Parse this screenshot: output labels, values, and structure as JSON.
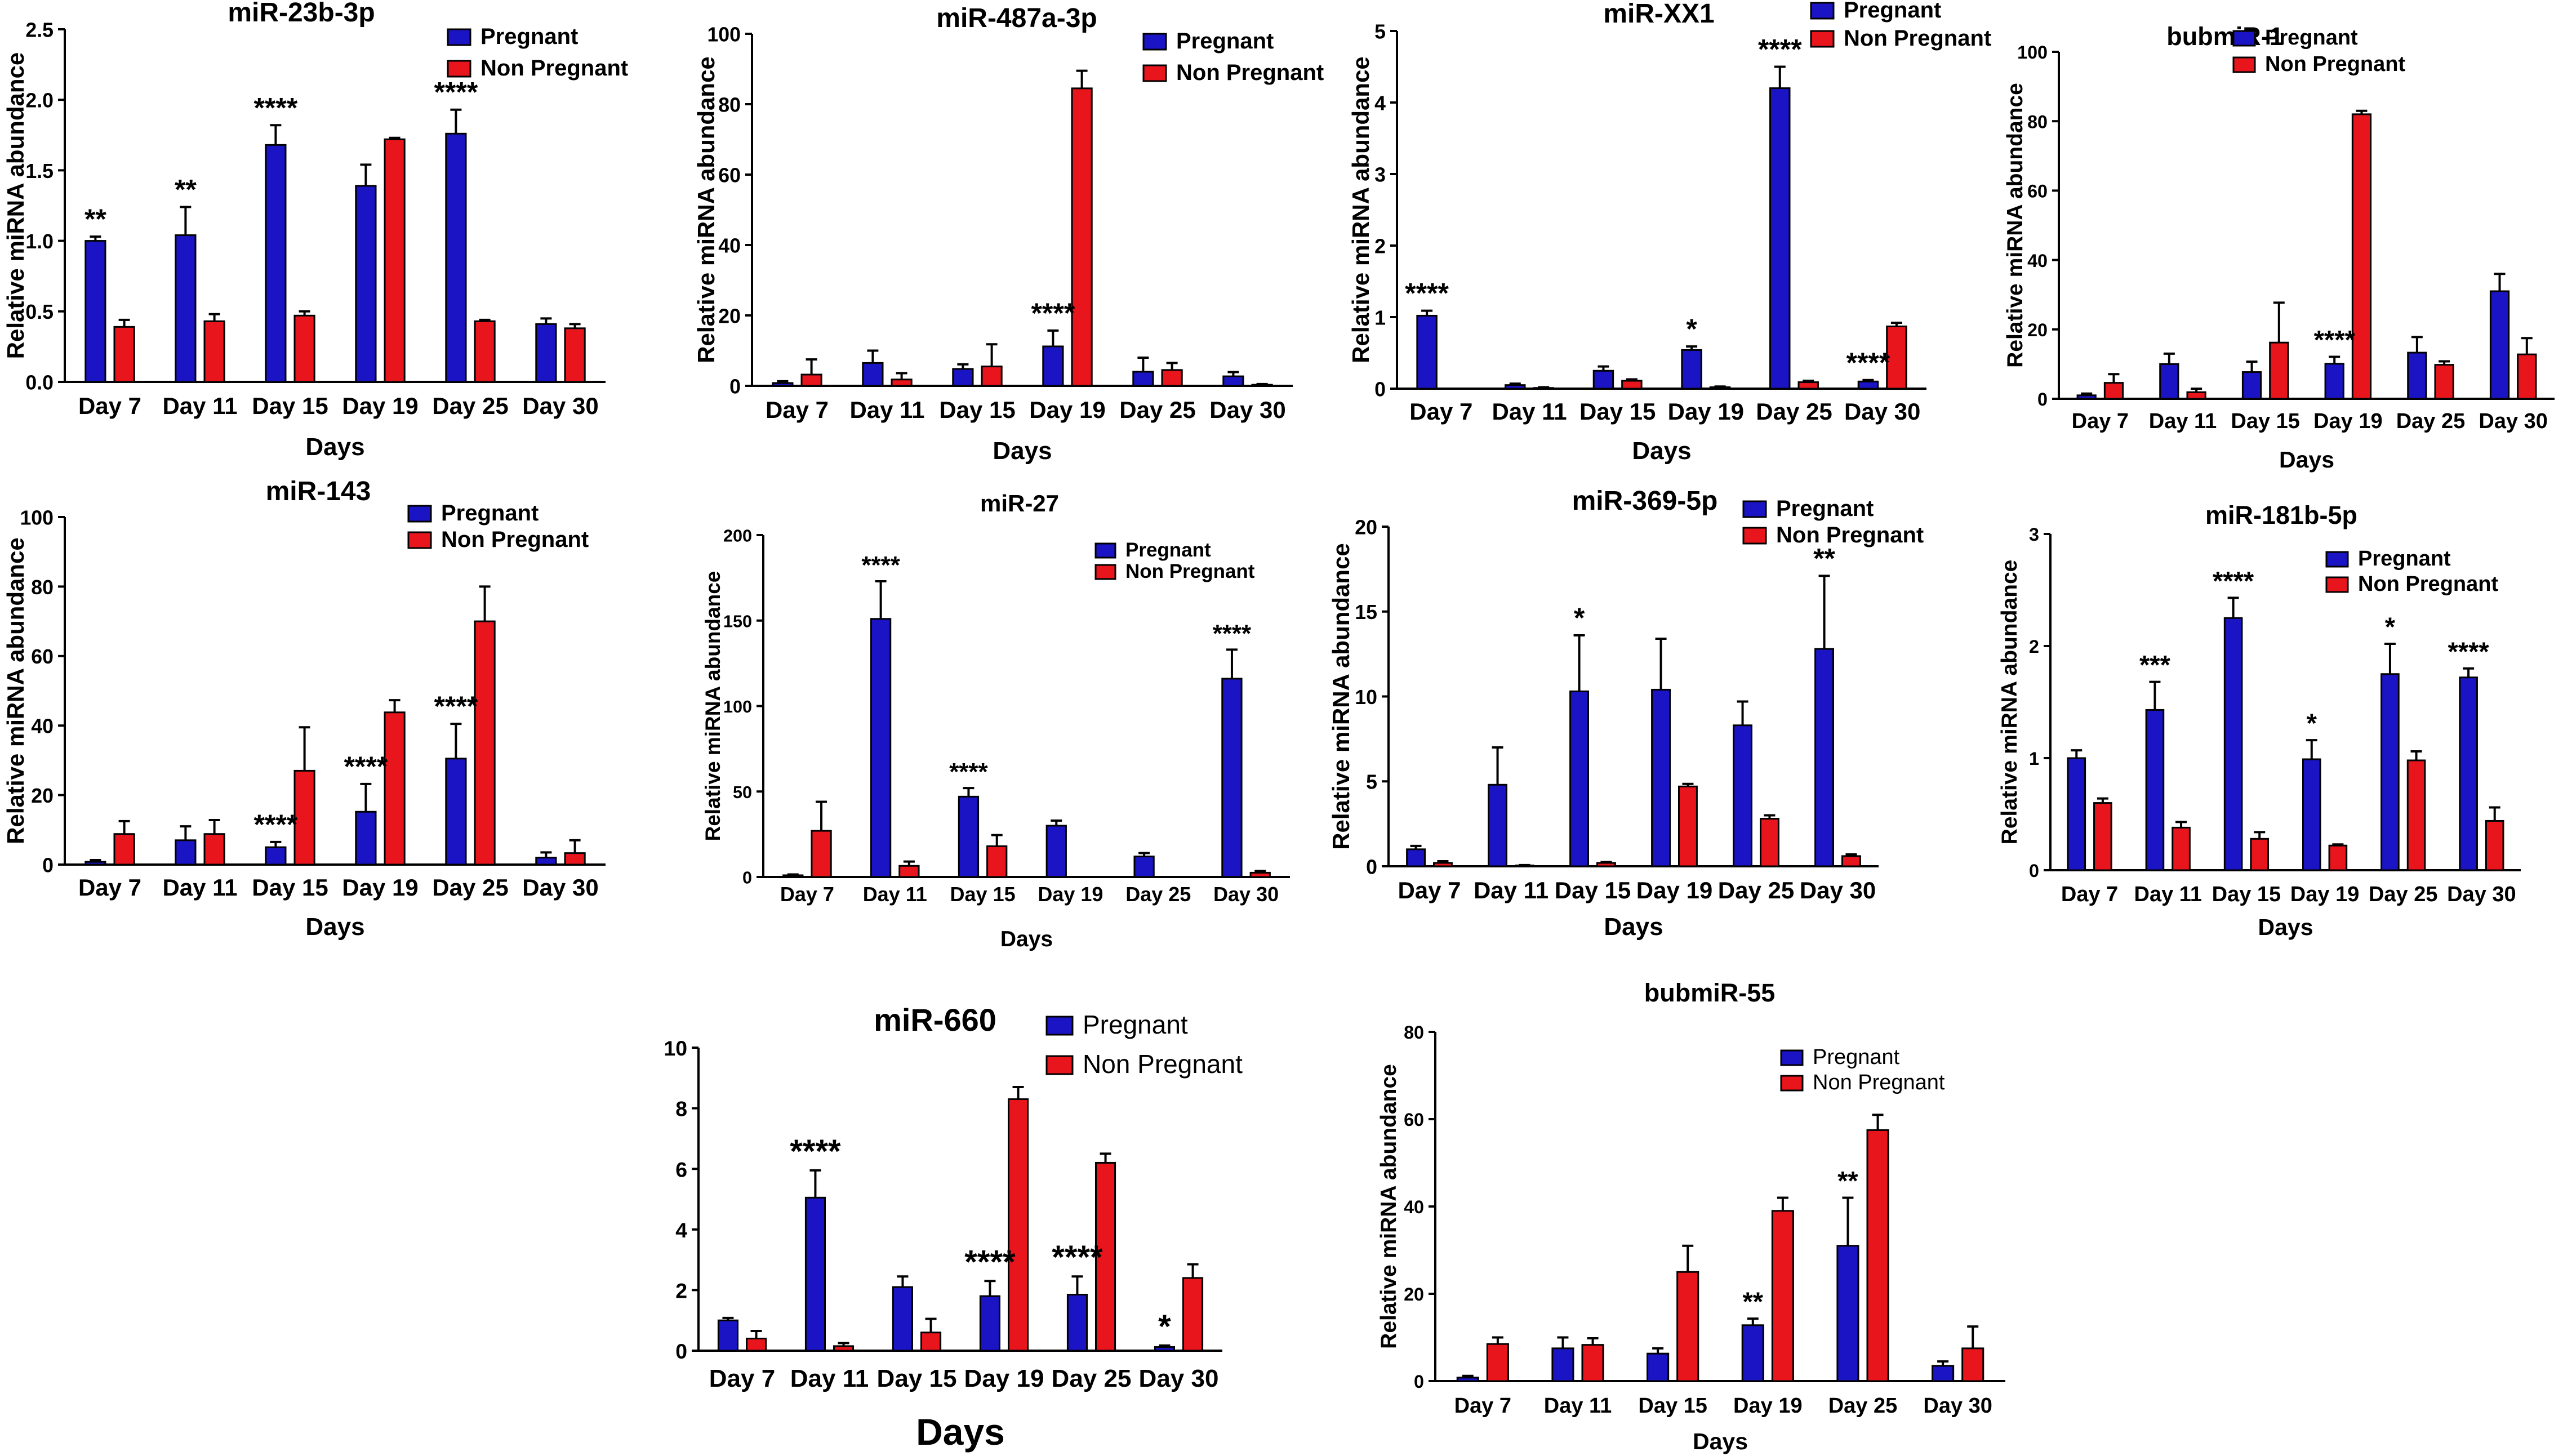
{
  "figure": {
    "x_label": "Days"
  },
  "colors": {
    "pregnant": "#1a14c4",
    "non_pregnant": "#e8161c",
    "error": "#000000"
  },
  "chart_data": [
    {
      "type": "bar",
      "title": "miR-23b-3p",
      "xlabel": "Days",
      "ylabel": "Relative miRNA abundance",
      "categories": [
        "Day 7",
        "Day 11",
        "Day 15",
        "Day 19",
        "Day 25",
        "Day 30"
      ],
      "ylim": [
        0,
        2.5
      ],
      "yticks": [
        "0.0",
        "0.5",
        "1.0",
        "1.5",
        "2.0",
        "2.5"
      ],
      "legend": [
        "Pregnant",
        "Non Pregnant"
      ],
      "series": [
        {
          "name": "Pregnant",
          "values": [
            1.0,
            1.04,
            1.68,
            1.39,
            1.76,
            0.41
          ],
          "errors": [
            0.03,
            0.2,
            0.14,
            0.15,
            0.17,
            0.04
          ]
        },
        {
          "name": "Non Pregnant",
          "values": [
            0.39,
            0.43,
            0.47,
            1.72,
            0.43,
            0.38
          ],
          "errors": [
            0.05,
            0.05,
            0.03,
            0.01,
            0.01,
            0.03
          ]
        }
      ],
      "annotations": [
        "**",
        "**",
        "****",
        "",
        "****",
        ""
      ]
    },
    {
      "type": "bar",
      "title": "miR-487a-3p",
      "xlabel": "Days",
      "ylabel": "Relative miRNA abundance",
      "categories": [
        "Day 7",
        "Day 11",
        "Day 15",
        "Day 19",
        "Day 25",
        "Day 30"
      ],
      "ylim": [
        0,
        100
      ],
      "yticks": [
        "0",
        "20",
        "40",
        "60",
        "80",
        "100"
      ],
      "legend": [
        "Pregnant",
        "Non Pregnant"
      ],
      "series": [
        {
          "name": "Pregnant",
          "values": [
            0.8,
            6.5,
            4.8,
            11.2,
            4.0,
            2.7
          ],
          "errors": [
            0.5,
            3.5,
            1.3,
            4.5,
            4.0,
            1.2
          ]
        },
        {
          "name": "Non Pregnant",
          "values": [
            3.2,
            1.8,
            5.5,
            84.5,
            4.5,
            0.3
          ],
          "errors": [
            4.3,
            1.8,
            6.3,
            5.0,
            2.0,
            0.2
          ]
        }
      ],
      "annotations": [
        "",
        "",
        "",
        "****",
        "",
        ""
      ]
    },
    {
      "type": "bar",
      "title": "miR-XX1",
      "xlabel": "Days",
      "ylabel": "Relative miRNA abundance",
      "categories": [
        "Day 7",
        "Day 11",
        "Day 15",
        "Day 19",
        "Day 25",
        "Day 30"
      ],
      "ylim": [
        0,
        5
      ],
      "yticks": [
        "0",
        "1",
        "2",
        "3",
        "4",
        "5"
      ],
      "legend": [
        "Pregnant",
        "Non Pregnant"
      ],
      "series": [
        {
          "name": "Pregnant",
          "values": [
            1.02,
            0.05,
            0.25,
            0.54,
            4.2,
            0.1
          ],
          "errors": [
            0.07,
            0.02,
            0.06,
            0.05,
            0.3,
            0.02
          ]
        },
        {
          "name": "Non Pregnant",
          "values": [
            0.0,
            0.01,
            0.11,
            0.02,
            0.09,
            0.87
          ],
          "errors": [
            0.0,
            0.01,
            0.02,
            0.01,
            0.02,
            0.05
          ]
        }
      ],
      "annotations": [
        "****",
        "",
        "",
        "*",
        "****",
        "****"
      ]
    },
    {
      "type": "bar",
      "title": "bubmiR-1",
      "xlabel": "Days",
      "ylabel": "Relative miRNA abundance",
      "categories": [
        "Day 7",
        "Day 11",
        "Day 15",
        "Day 19",
        "Day 25",
        "Day 30"
      ],
      "ylim": [
        0,
        100
      ],
      "yticks": [
        "0",
        "20",
        "40",
        "60",
        "80",
        "100"
      ],
      "legend": [
        "Pregnant",
        "Non Pregnant"
      ],
      "series": [
        {
          "name": "Pregnant",
          "values": [
            1.0,
            10.0,
            7.7,
            10.1,
            13.3,
            31.0
          ],
          "errors": [
            0.5,
            3.0,
            3.0,
            2.0,
            4.5,
            5.0
          ]
        },
        {
          "name": "Non Pregnant",
          "values": [
            4.6,
            1.9,
            16.2,
            82.0,
            9.8,
            12.8
          ],
          "errors": [
            2.5,
            1.0,
            11.5,
            1.0,
            1.0,
            4.7
          ]
        }
      ],
      "annotations": [
        "",
        "",
        "",
        "****",
        "",
        ""
      ]
    },
    {
      "type": "bar",
      "title": "miR-143",
      "xlabel": "Days",
      "ylabel": "Relative miRNA abundance",
      "categories": [
        "Day 7",
        "Day 11",
        "Day 15",
        "Day 19",
        "Day 25",
        "Day 30"
      ],
      "ylim": [
        0,
        100
      ],
      "yticks": [
        "0",
        "20",
        "40",
        "60",
        "80",
        "100"
      ],
      "legend": [
        "Pregnant",
        "Non Pregnant"
      ],
      "series": [
        {
          "name": "Pregnant",
          "values": [
            0.8,
            7.0,
            5.0,
            15.2,
            30.5,
            2.0
          ],
          "errors": [
            0.5,
            4.0,
            1.5,
            8.0,
            10.0,
            1.5
          ]
        },
        {
          "name": "Non Pregnant",
          "values": [
            8.8,
            8.8,
            27.0,
            43.8,
            70.0,
            3.3
          ],
          "errors": [
            3.7,
            4.0,
            12.5,
            3.5,
            10.0,
            3.7
          ]
        }
      ],
      "annotations": [
        "",
        "",
        "****",
        "****",
        "****",
        ""
      ]
    },
    {
      "type": "bar",
      "title": "miR-27",
      "xlabel": "Days",
      "ylabel": "Relative miRNA abundance",
      "categories": [
        "Day 7",
        "Day 11",
        "Day 15",
        "Day 19",
        "Day 25",
        "Day 30"
      ],
      "ylim": [
        0,
        200
      ],
      "yticks": [
        "0",
        "50",
        "100",
        "150",
        "200"
      ],
      "legend": [
        "Pregnant",
        "Non Pregnant"
      ],
      "series": [
        {
          "name": "Pregnant",
          "values": [
            1.0,
            151.0,
            47.0,
            30.0,
            12.0,
            116.0
          ],
          "errors": [
            0.5,
            22.0,
            5.0,
            3.0,
            2.0,
            17.0
          ]
        },
        {
          "name": "Non Pregnant",
          "values": [
            27.0,
            6.5,
            18.0,
            0.0,
            0.0,
            2.5
          ],
          "errors": [
            17.0,
            2.5,
            6.5,
            0.0,
            0.0,
            1.0
          ]
        }
      ],
      "annotations": [
        "",
        "****",
        "****",
        "",
        "",
        "****"
      ]
    },
    {
      "type": "bar",
      "title": "miR-369-5p",
      "xlabel": "Days",
      "ylabel": "Relative miRNA abundance",
      "categories": [
        "Day 7",
        "Day 11",
        "Day 15",
        "Day 19",
        "Day 25",
        "Day 30"
      ],
      "ylim": [
        0,
        20
      ],
      "yticks": [
        "0",
        "5",
        "10",
        "15",
        "20"
      ],
      "legend": [
        "Pregnant",
        "Non Pregnant"
      ],
      "series": [
        {
          "name": "Pregnant",
          "values": [
            1.0,
            4.8,
            10.3,
            10.4,
            8.3,
            12.8
          ],
          "errors": [
            0.2,
            2.2,
            3.3,
            3.0,
            1.4,
            4.3
          ]
        },
        {
          "name": "Non Pregnant",
          "values": [
            0.2,
            0.05,
            0.2,
            4.7,
            2.8,
            0.6
          ],
          "errors": [
            0.1,
            0.02,
            0.05,
            0.15,
            0.2,
            0.1
          ]
        }
      ],
      "annotations": [
        "",
        "",
        "*",
        "",
        "",
        "**"
      ]
    },
    {
      "type": "bar",
      "title": "miR-181b-5p",
      "xlabel": "Days",
      "ylabel": "Relative miRNA abundance",
      "categories": [
        "Day 7",
        "Day 11",
        "Day 15",
        "Day 19",
        "Day 25",
        "Day 30"
      ],
      "ylim": [
        0,
        3
      ],
      "yticks": [
        "0",
        "1",
        "2",
        "3"
      ],
      "legend": [
        "Pregnant",
        "Non Pregnant"
      ],
      "series": [
        {
          "name": "Pregnant",
          "values": [
            1.0,
            1.43,
            2.25,
            0.99,
            1.75,
            1.72
          ],
          "errors": [
            0.07,
            0.25,
            0.18,
            0.17,
            0.27,
            0.08
          ]
        },
        {
          "name": "Non Pregnant",
          "values": [
            0.6,
            0.38,
            0.28,
            0.22,
            0.98,
            0.44
          ],
          "errors": [
            0.04,
            0.05,
            0.06,
            0.01,
            0.08,
            0.12
          ]
        }
      ],
      "annotations": [
        "",
        "***",
        "****",
        "*",
        "*",
        "****"
      ]
    },
    {
      "type": "bar",
      "title": "miR-660",
      "xlabel": "Days",
      "ylabel": "",
      "categories": [
        "Day 7",
        "Day 11",
        "Day 15",
        "Day 19",
        "Day 25",
        "Day 30"
      ],
      "ylim": [
        0,
        10
      ],
      "yticks": [
        "0",
        "2",
        "4",
        "6",
        "8",
        "10"
      ],
      "legend": [
        "Pregnant",
        "Non Pregnant"
      ],
      "series": [
        {
          "name": "Pregnant",
          "values": [
            1.0,
            5.05,
            2.1,
            1.8,
            1.85,
            0.12
          ],
          "errors": [
            0.08,
            0.9,
            0.35,
            0.5,
            0.6,
            0.05
          ]
        },
        {
          "name": "Non Pregnant",
          "values": [
            0.4,
            0.15,
            0.6,
            8.3,
            6.2,
            2.4
          ],
          "errors": [
            0.25,
            0.1,
            0.45,
            0.4,
            0.3,
            0.45
          ]
        }
      ],
      "annotations": [
        "",
        "****",
        "",
        "****",
        "****",
        "*"
      ]
    },
    {
      "type": "bar",
      "title": "bubmiR-55",
      "xlabel": "Days",
      "ylabel": "Relative miRNA abundance",
      "categories": [
        "Day 7",
        "Day 11",
        "Day 15",
        "Day 19",
        "Day 25",
        "Day 30"
      ],
      "ylim": [
        0,
        80
      ],
      "yticks": [
        "0",
        "20",
        "40",
        "60",
        "80"
      ],
      "legend": [
        "Pregnant",
        "Non Pregnant"
      ],
      "series": [
        {
          "name": "Pregnant",
          "values": [
            0.8,
            7.5,
            6.3,
            12.8,
            31.0,
            3.5
          ],
          "errors": [
            0.4,
            2.5,
            1.2,
            1.5,
            11.0,
            1.0
          ]
        },
        {
          "name": "Non Pregnant",
          "values": [
            8.5,
            8.3,
            25.0,
            39.0,
            57.5,
            7.5
          ],
          "errors": [
            1.5,
            1.5,
            6.0,
            3.0,
            3.5,
            5.0
          ]
        }
      ],
      "annotations": [
        "",
        "",
        "",
        "**",
        "**",
        ""
      ]
    }
  ]
}
